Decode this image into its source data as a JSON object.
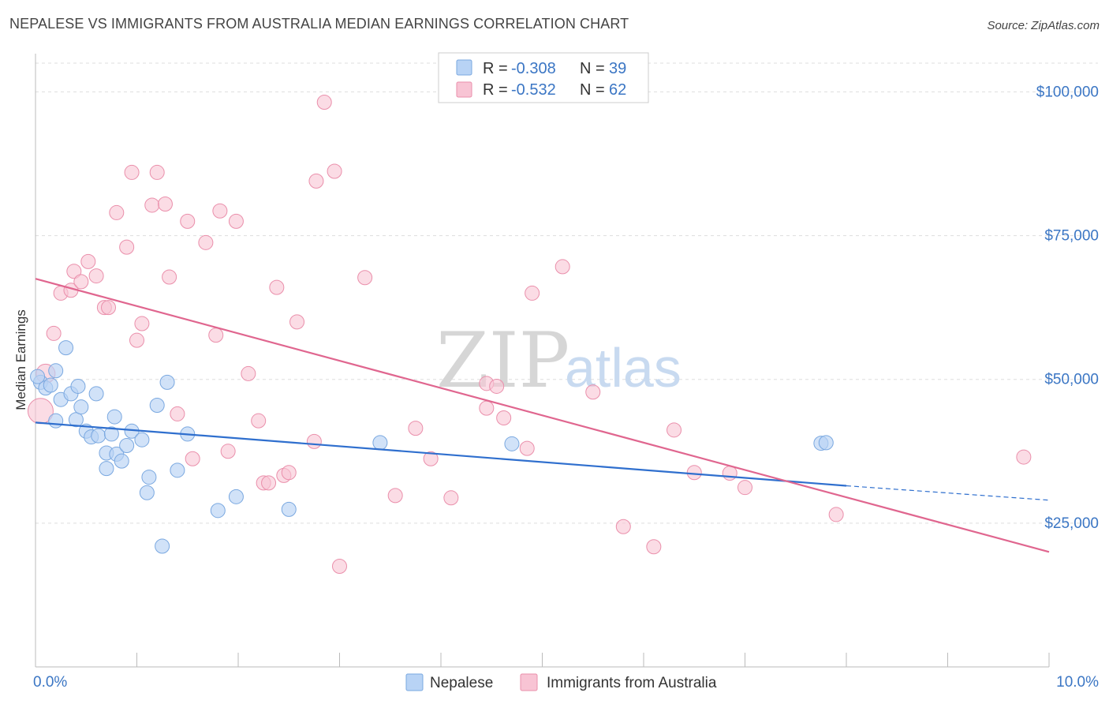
{
  "title": "NEPALESE VS IMMIGRANTS FROM AUSTRALIA MEDIAN EARNINGS CORRELATION CHART",
  "source": "Source: ZipAtlas.com",
  "watermark": {
    "zip": "ZIP",
    "atlas": "atlas"
  },
  "colors": {
    "nepalese_fill": "#b8d3f5",
    "nepalese_stroke": "#7aa8e0",
    "nepalese_line": "#2f6fce",
    "australia_fill": "#f8c4d4",
    "australia_stroke": "#ea8fab",
    "australia_line": "#e0668f",
    "tick_text": "#3b76c4",
    "grid": "#dddddd"
  },
  "legend": {
    "rows": [
      {
        "r_label": "R =",
        "r_value": "-0.308",
        "n_label": "N =",
        "n_value": "39"
      },
      {
        "r_label": "R =",
        "r_value": "-0.532",
        "n_label": "N =",
        "n_value": "62"
      }
    ]
  },
  "chart_data": {
    "type": "scatter",
    "ylabel": "Median Earnings",
    "xlabel": "",
    "xlim": [
      0,
      10
    ],
    "ylim": [
      0,
      105000
    ],
    "x_tick_labels": [
      "0.0%",
      "10.0%"
    ],
    "y_tick_values": [
      25000,
      50000,
      75000,
      100000
    ],
    "y_tick_labels": [
      "$25,000",
      "$50,000",
      "$75,000",
      "$100,000"
    ],
    "grid": true,
    "series": [
      {
        "name": "Nepalese",
        "trend": {
          "x0": 0.0,
          "y0": 42500,
          "x1": 8.0,
          "y1": 31500,
          "x_dash_end": 10.0,
          "y_dash_end": 29000
        },
        "points": [
          [
            0.05,
            49500
          ],
          [
            0.1,
            48500
          ],
          [
            0.15,
            49000
          ],
          [
            0.2,
            51500
          ],
          [
            0.3,
            55500
          ],
          [
            0.2,
            42800
          ],
          [
            0.25,
            46500
          ],
          [
            0.35,
            47500
          ],
          [
            0.4,
            43000
          ],
          [
            0.42,
            48800
          ],
          [
            0.45,
            45200
          ],
          [
            0.5,
            41000
          ],
          [
            0.55,
            40000
          ],
          [
            0.6,
            47500
          ],
          [
            0.62,
            40200
          ],
          [
            0.7,
            37200
          ],
          [
            0.7,
            34500
          ],
          [
            0.75,
            40500
          ],
          [
            0.78,
            43500
          ],
          [
            0.8,
            37000
          ],
          [
            0.85,
            35800
          ],
          [
            0.9,
            38500
          ],
          [
            0.95,
            41000
          ],
          [
            1.05,
            39500
          ],
          [
            1.12,
            33000
          ],
          [
            1.1,
            30300
          ],
          [
            1.2,
            45500
          ],
          [
            1.25,
            21000
          ],
          [
            1.3,
            49500
          ],
          [
            1.4,
            34200
          ],
          [
            1.5,
            40500
          ],
          [
            1.8,
            27200
          ],
          [
            1.98,
            29600
          ],
          [
            2.5,
            27400
          ],
          [
            3.4,
            39000
          ],
          [
            4.7,
            38800
          ],
          [
            7.75,
            38900
          ],
          [
            7.8,
            39000
          ],
          [
            0.02,
            50500
          ]
        ]
      },
      {
        "name": "Immigrants from Australia",
        "trend": {
          "x0": 0.0,
          "y0": 67500,
          "x1": 10.0,
          "y1": 20000
        },
        "points": [
          [
            0.05,
            44500
          ],
          [
            0.1,
            51000
          ],
          [
            0.18,
            58000
          ],
          [
            0.25,
            65000
          ],
          [
            0.35,
            65500
          ],
          [
            0.38,
            68800
          ],
          [
            0.45,
            67000
          ],
          [
            0.52,
            70500
          ],
          [
            0.6,
            68000
          ],
          [
            0.68,
            62500
          ],
          [
            0.72,
            62500
          ],
          [
            0.8,
            79000
          ],
          [
            0.9,
            73000
          ],
          [
            0.95,
            86000
          ],
          [
            1.0,
            56800
          ],
          [
            1.05,
            59700
          ],
          [
            1.15,
            80300
          ],
          [
            1.2,
            86000
          ],
          [
            1.28,
            80500
          ],
          [
            1.32,
            67800
          ],
          [
            1.4,
            44000
          ],
          [
            1.5,
            77500
          ],
          [
            1.55,
            36200
          ],
          [
            1.68,
            73800
          ],
          [
            1.78,
            57700
          ],
          [
            1.82,
            79300
          ],
          [
            1.9,
            37500
          ],
          [
            1.98,
            77500
          ],
          [
            2.1,
            51000
          ],
          [
            2.2,
            42800
          ],
          [
            2.25,
            32000
          ],
          [
            2.3,
            32000
          ],
          [
            2.38,
            66000
          ],
          [
            2.45,
            33300
          ],
          [
            2.5,
            33800
          ],
          [
            2.58,
            60000
          ],
          [
            2.75,
            39200
          ],
          [
            2.77,
            84500
          ],
          [
            2.85,
            98200
          ],
          [
            2.95,
            86200
          ],
          [
            3.0,
            17500
          ],
          [
            3.25,
            67700
          ],
          [
            3.55,
            29800
          ],
          [
            3.75,
            41500
          ],
          [
            3.9,
            36200
          ],
          [
            4.1,
            29400
          ],
          [
            4.45,
            49300
          ],
          [
            4.45,
            45000
          ],
          [
            4.55,
            48800
          ],
          [
            4.62,
            43300
          ],
          [
            4.85,
            38000
          ],
          [
            4.9,
            65000
          ],
          [
            5.2,
            69600
          ],
          [
            5.5,
            47800
          ],
          [
            5.8,
            24400
          ],
          [
            6.1,
            20900
          ],
          [
            6.3,
            41200
          ],
          [
            6.5,
            33800
          ],
          [
            6.85,
            33700
          ],
          [
            7.0,
            31200
          ],
          [
            7.9,
            26500
          ],
          [
            9.75,
            36500
          ]
        ]
      }
    ]
  },
  "bottom_legend": [
    {
      "label": "Nepalese"
    },
    {
      "label": "Immigrants from Australia"
    }
  ]
}
